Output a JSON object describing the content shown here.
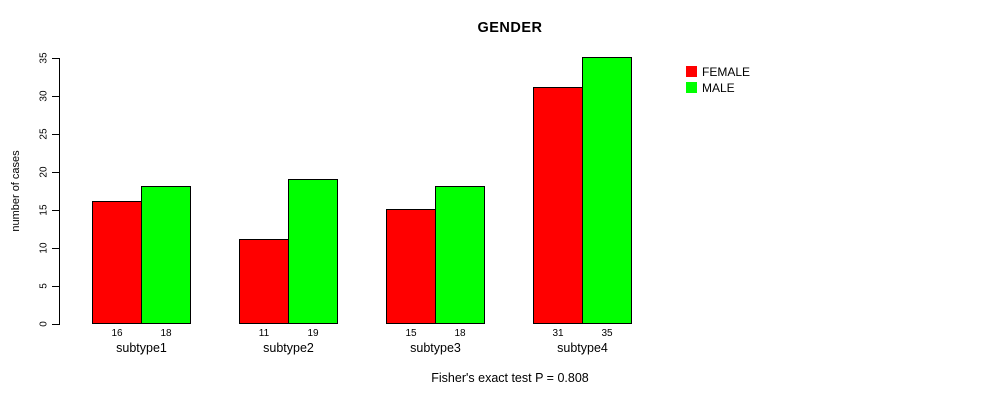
{
  "chart_data": {
    "type": "bar",
    "title": "GENDER",
    "ylabel": "number of cases",
    "xlabel": "",
    "ylim": [
      0,
      35
    ],
    "yticks": [
      0,
      5,
      10,
      15,
      20,
      25,
      30,
      35
    ],
    "grid": false,
    "legend_position": "right-of-plot-top",
    "categories": [
      "subtype1",
      "subtype2",
      "subtype3",
      "subtype4"
    ],
    "series": [
      {
        "name": "FEMALE",
        "color": "#FF0000",
        "values": [
          16,
          11,
          15,
          31
        ]
      },
      {
        "name": "MALE",
        "color": "#00FF00",
        "values": [
          18,
          19,
          18,
          35
        ]
      }
    ],
    "bar_value_labels": [
      [
        "16",
        "18"
      ],
      [
        "11",
        "19"
      ],
      [
        "15",
        "18"
      ],
      [
        "31",
        "35"
      ]
    ],
    "caption": "Fisher's exact test P = 0.808"
  },
  "colors": {
    "background": "#FFFFFF",
    "axis": "#000000",
    "text": "#000000",
    "bar_border": "#000000",
    "female": "#FF0000",
    "male": "#00FF00"
  }
}
